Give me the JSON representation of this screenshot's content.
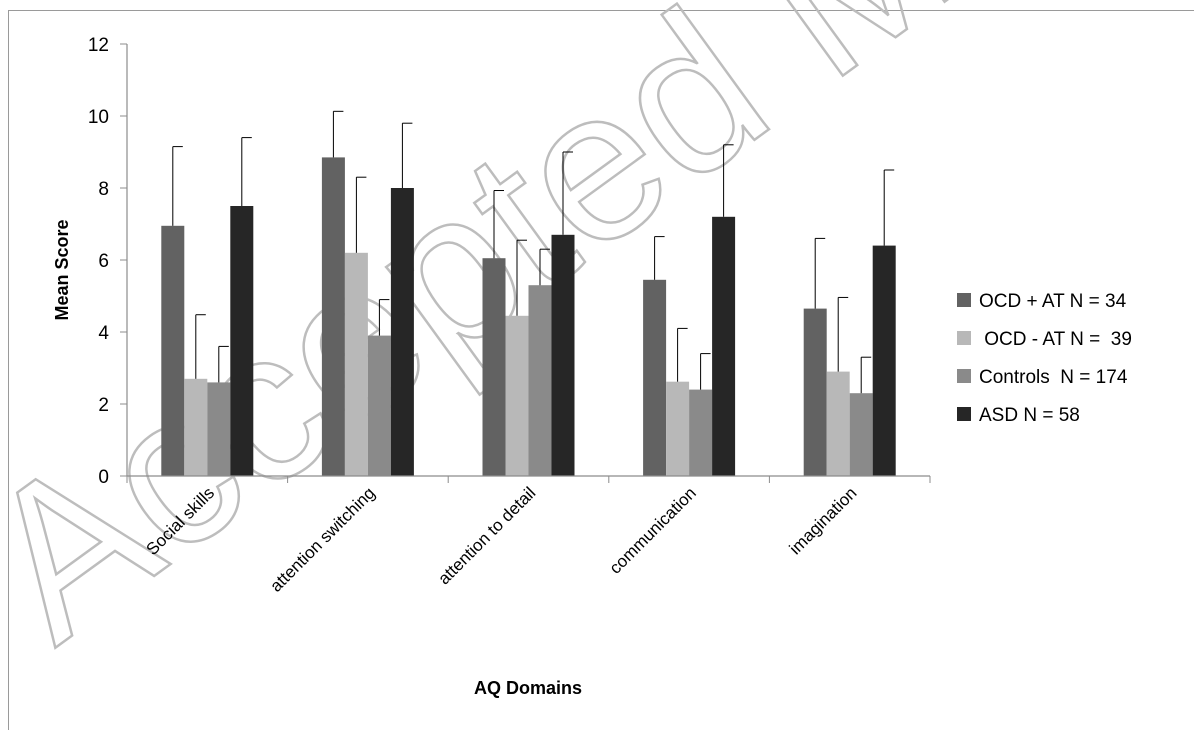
{
  "watermark": "Accepted Manuscript",
  "chart_data": {
    "type": "bar",
    "title": "",
    "xlabel": "AQ Domains",
    "ylabel": "Mean Score",
    "ylim": [
      0,
      12
    ],
    "yticks": [
      0,
      2,
      4,
      6,
      8,
      10,
      12
    ],
    "grid": false,
    "legend_position": "right",
    "categories": [
      "Social skills",
      "attention switching",
      "attention to detail",
      "communication",
      "imagination"
    ],
    "series": [
      {
        "name": "OCD + AT N = 34",
        "color": "#626262",
        "values": [
          6.95,
          8.85,
          6.05,
          5.45,
          4.65
        ],
        "errors": [
          2.2,
          1.28,
          1.88,
          1.2,
          1.95
        ]
      },
      {
        "name": " OCD - AT N =  39",
        "color": "#b8b8b8",
        "values": [
          2.7,
          6.2,
          4.45,
          2.62,
          2.9
        ],
        "errors": [
          1.78,
          2.1,
          2.1,
          1.48,
          2.06
        ]
      },
      {
        "name": "Controls  N = 174",
        "color": "#8a8a8a",
        "values": [
          2.6,
          3.9,
          5.3,
          2.4,
          2.3
        ],
        "errors": [
          1.0,
          1.0,
          1.0,
          1.0,
          1.0
        ]
      },
      {
        "name": "ASD N = 58",
        "color": "#262626",
        "values": [
          7.5,
          8.0,
          6.7,
          7.2,
          6.4
        ],
        "errors": [
          1.9,
          1.8,
          2.3,
          2.0,
          2.1
        ]
      }
    ]
  }
}
